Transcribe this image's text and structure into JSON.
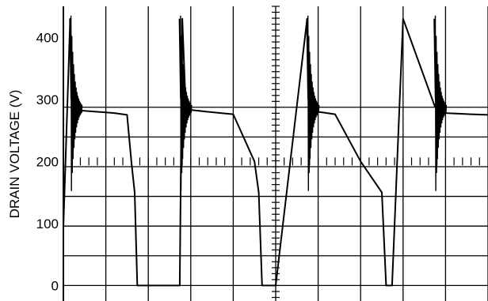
{
  "chart_data": {
    "type": "line",
    "title": "",
    "ylabel": "DRAIN VOLTAGE (V)",
    "xlabel": "",
    "ylim": [
      -25,
      450
    ],
    "y_ticks": [
      "0",
      "100",
      "200",
      "300",
      "400"
    ],
    "y_tick_values": [
      0,
      100,
      200,
      300,
      400
    ],
    "grid": true,
    "grid_divisions": {
      "x": 10,
      "y": 8
    },
    "trace_color": "#000000",
    "series": [
      {
        "x": [
          0,
          0.8,
          1.0,
          1.2,
          2.0,
          4.0,
          6.0,
          7.5,
          8.0,
          8.4,
          8.7,
          10.0,
          13.7,
          14.0,
          14.4,
          15.0,
          17.0,
          20.0,
          22.5,
          23.0,
          23.4,
          23.7,
          25.0,
          28.7,
          29.0,
          29.4,
          30.0,
          32.0,
          35.0,
          37.5,
          38.0,
          38.4,
          38.7,
          40.0,
          43.7,
          44.0,
          44.4,
          45.0,
          48.0,
          50.0
        ],
        "y": [
          95,
          430,
          290,
          283,
          282,
          280,
          278,
          275,
          200,
          150,
          0,
          0,
          0,
          430,
          290,
          283,
          280,
          276,
          200,
          150,
          0,
          0,
          0,
          430,
          290,
          283,
          280,
          276,
          200,
          150,
          0,
          0,
          0,
          430,
          290,
          283,
          280,
          278,
          276,
          275
        ]
      }
    ]
  }
}
